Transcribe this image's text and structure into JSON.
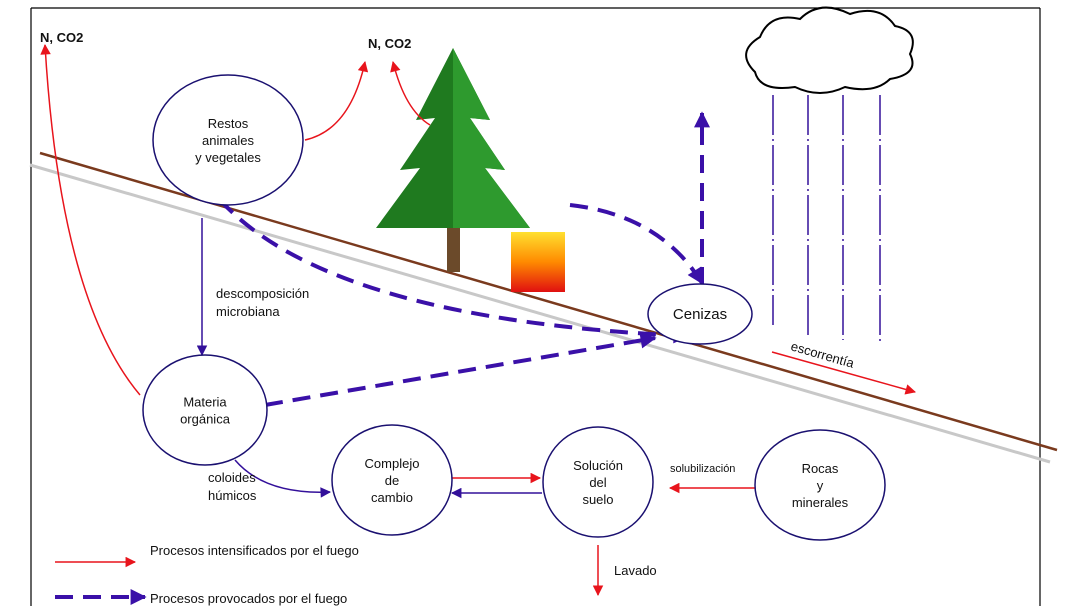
{
  "labels": {
    "emission_left": "N, CO2",
    "emission_center": "N, CO2",
    "decomposition": [
      "descomposición",
      "microbiana"
    ],
    "colloids": [
      "coloides",
      "húmicos"
    ],
    "solubilization": "solubilización",
    "runoff": "escorrentía",
    "leaching": "Lavado"
  },
  "nodes": [
    {
      "lines": [
        "Restos",
        "animales",
        "y vegetales"
      ]
    },
    {
      "lines": [
        "Materia",
        "orgánica"
      ]
    },
    {
      "lines": [
        "Complejo",
        "de",
        "cambio"
      ]
    },
    {
      "lines": [
        "Solución",
        "del",
        "suelo"
      ]
    },
    {
      "lines": [
        "Rocas",
        "y",
        "minerales"
      ]
    },
    {
      "lines": [
        "Cenizas"
      ]
    }
  ],
  "legend": [
    {
      "label": "Procesos intensificados por el fuego"
    },
    {
      "label": "Procesos provocados por el fuego"
    }
  ]
}
